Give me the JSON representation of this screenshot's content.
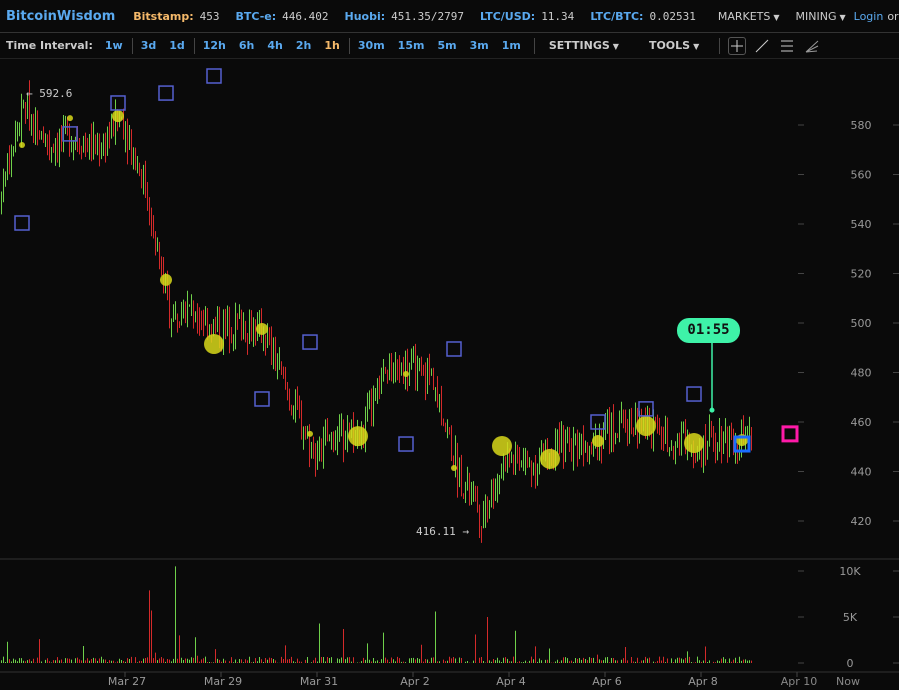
{
  "header": {
    "brand": "BitcoinWisdom",
    "tickers": [
      {
        "label": "Bitstamp:",
        "value": "453",
        "color": "#f5b96a"
      },
      {
        "label": "BTC-e:",
        "value": "446.402",
        "color": "#5aa9ef"
      },
      {
        "label": "Huobi:",
        "value": "451.35/2797",
        "color": "#5aa9ef"
      },
      {
        "label": "LTC/USD:",
        "value": "11.34",
        "color": "#5aa9ef"
      },
      {
        "label": "LTC/BTC:",
        "value": "0.02531",
        "color": "#5aa9ef"
      }
    ],
    "markets": "MARKETS",
    "mining": "MINING",
    "login": "Login",
    "or": "or"
  },
  "toolbar": {
    "time_interval_label": "Time Interval:",
    "intervals": [
      "1w",
      "3d",
      "1d",
      "12h",
      "6h",
      "4h",
      "2h",
      "1h",
      "30m",
      "15m",
      "5m",
      "3m",
      "1m"
    ],
    "active_interval": "1h",
    "settings": "SETTINGS",
    "tools": "TOOLS",
    "tool_icons": [
      "crosshair-icon",
      "trend-line-icon",
      "horizontal-lines-icon",
      "fan-icon"
    ]
  },
  "chart_data": {
    "type": "candlestick",
    "y_ticks": [
      420,
      440,
      460,
      480,
      500,
      520,
      540,
      560,
      580
    ],
    "volume_ticks": [
      "0",
      "5K",
      "10K"
    ],
    "x_ticks": [
      "Mar 27",
      "Mar 29",
      "Mar 31",
      "Apr 2",
      "Apr 4",
      "Apr 6",
      "Apr 8",
      "Apr 10",
      "Now"
    ],
    "up_color": "#6fd04a",
    "down_color": "#d42a2a",
    "price_path": [
      [
        "Mar 24 09:00",
        555
      ],
      [
        "Mar 24 21:00",
        588
      ],
      [
        "Mar 25 09:00",
        572
      ],
      [
        "Mar 25 21:00",
        576
      ],
      [
        "Mar 26 09:00",
        570
      ],
      [
        "Mar 26 21:00",
        583
      ],
      [
        "Mar 27 09:00",
        555
      ],
      [
        "Mar 27 21:00",
        505
      ],
      [
        "Mar 28 09:00",
        505
      ],
      [
        "Mar 28 21:00",
        497
      ],
      [
        "Mar 29 09:00",
        500
      ],
      [
        "Mar 29 21:00",
        495
      ],
      [
        "Mar 30 09:00",
        470
      ],
      [
        "Mar 30 21:00",
        448
      ],
      [
        "Mar 31 09:00",
        455
      ],
      [
        "Mar 31 21:00",
        455
      ],
      [
        "Apr 1 09:00",
        480
      ],
      [
        "Apr 1 21:00",
        482
      ],
      [
        "Apr 2 09:00",
        478
      ],
      [
        "Apr 2 21:00",
        440
      ],
      [
        "Apr 3 09:00",
        422
      ],
      [
        "Apr 3 21:00",
        445
      ],
      [
        "Apr 4 09:00",
        442
      ],
      [
        "Apr 4 21:00",
        448
      ],
      [
        "Apr 5 09:00",
        452
      ],
      [
        "Apr 5 21:00",
        455
      ],
      [
        "Apr 6 09:00",
        460
      ],
      [
        "Apr 6 21:00",
        458
      ],
      [
        "Apr 7 09:00",
        453
      ],
      [
        "Apr 7 21:00",
        450
      ],
      [
        "Apr 8 09:00",
        455
      ],
      [
        "Apr 8 21:00",
        452
      ]
    ],
    "volume_peaks": [
      [
        "Mar 27 11:00",
        7900
      ],
      [
        "Mar 27 12:00",
        5700
      ],
      [
        "Mar 28 00:00",
        10500
      ],
      [
        "Mar 28 02:00",
        3000
      ],
      [
        "Mar 31 00:00",
        4300
      ],
      [
        "Mar 31 12:00",
        3700
      ],
      [
        "Apr 1 08:00",
        3300
      ],
      [
        "Apr 2 10:00",
        5600
      ],
      [
        "Apr 3 06:00",
        3100
      ],
      [
        "Apr 3 12:00",
        5000
      ],
      [
        "Apr 4 02:00",
        3500
      ],
      [
        "Mar 25 04:00",
        2600
      ],
      [
        "Mar 28 10:00",
        2800
      ]
    ],
    "high_label": "← 592.6",
    "low_label": "416.11 →",
    "big_trades": [
      [
        "Mar 24 19:30",
        571.9,
        "s"
      ],
      [
        "Mar 25 19:30",
        582.8,
        "s"
      ],
      [
        "Mar 26 19:30",
        583.6,
        "m"
      ],
      [
        "Mar 27 19:30",
        517.4,
        "m"
      ],
      [
        "Mar 28 19:30",
        491.5,
        "l"
      ],
      [
        "Mar 29 19:30",
        497.6,
        "m"
      ],
      [
        "Mar 30 19:30",
        455.2,
        "s"
      ],
      [
        "Mar 31 19:30",
        454.3,
        "l"
      ],
      [
        "Apr 1 19:30",
        479.4,
        "s"
      ],
      [
        "Apr 2 19:30",
        441.4,
        "s"
      ],
      [
        "Apr 3 19:30",
        450.3,
        "l"
      ],
      [
        "Apr 4 19:30",
        445.1,
        "l"
      ],
      [
        "Apr 5 19:30",
        452.3,
        "m"
      ],
      [
        "Apr 6 19:30",
        458.4,
        "l"
      ],
      [
        "Apr 7 19:30",
        451.5,
        "l"
      ],
      [
        "Apr 8 19:30",
        452.7,
        "m"
      ]
    ],
    "squares": [
      [
        "Mar 24 19:30",
        540.4
      ],
      [
        "Mar 25 19:30",
        576.4
      ],
      [
        "Mar 26 19:30",
        588.9
      ],
      [
        "Mar 27 19:30",
        592.9
      ],
      [
        "Mar 28 19:30",
        599.8
      ],
      [
        "Mar 29 19:30",
        469.3
      ],
      [
        "Mar 30 19:30",
        492.3
      ],
      [
        "Apr 1 19:30",
        451.1
      ],
      [
        "Apr 2 19:30",
        489.5
      ],
      [
        "Apr 5 19:30",
        460
      ],
      [
        "Apr 6 19:30",
        465.3
      ],
      [
        "Apr 7 19:30",
        471.3
      ]
    ],
    "current_square": [
      "Apr 8 19:30",
      451.1,
      "#1a6cff"
    ],
    "forecast_square": [
      "Apr 9 19:30",
      455.2,
      "#ff1aa8"
    ],
    "countdown": {
      "label": "01:55",
      "time": "Apr 8 04:30",
      "price": 464.8,
      "color": "#3ef2a8"
    },
    "marker_color": "#d8d81a",
    "square_color": "#5560d0"
  }
}
